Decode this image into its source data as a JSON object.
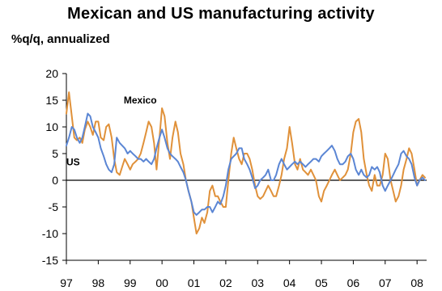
{
  "chart_data": {
    "type": "line",
    "title": "Mexican and US manufacturing activity",
    "ylabel": "%q/q, annualized",
    "xlabel": "",
    "ylim": [
      -15,
      20
    ],
    "yticks": [
      "20",
      "15",
      "10",
      "5",
      "0",
      "-5",
      "-10",
      "-15"
    ],
    "xlim": [
      1997,
      2008.3
    ],
    "xticks": [
      {
        "x": 1997,
        "label": "97"
      },
      {
        "x": 1998,
        "label": "98"
      },
      {
        "x": 1999,
        "label": "99"
      },
      {
        "x": 2000,
        "label": "00"
      },
      {
        "x": 2001,
        "label": "01"
      },
      {
        "x": 2002,
        "label": "02"
      },
      {
        "x": 2003,
        "label": "03"
      },
      {
        "x": 2004,
        "label": "04"
      },
      {
        "x": 2005,
        "label": "05"
      },
      {
        "x": 2006,
        "label": "06"
      },
      {
        "x": 2007,
        "label": "07"
      },
      {
        "x": 2008,
        "label": "08"
      }
    ],
    "grid": false,
    "colors": {
      "Mexico": "#e0913a",
      "US": "#5b86d4"
    },
    "series": [
      {
        "name": "Mexico",
        "x": [
          1997.0,
          1997.08,
          1997.17,
          1997.25,
          1997.33,
          1997.42,
          1997.5,
          1997.58,
          1997.67,
          1997.75,
          1997.83,
          1997.92,
          1998.0,
          1998.08,
          1998.17,
          1998.25,
          1998.33,
          1998.42,
          1998.5,
          1998.58,
          1998.67,
          1998.75,
          1998.83,
          1998.92,
          1999.0,
          1999.08,
          1999.17,
          1999.25,
          1999.33,
          1999.42,
          1999.5,
          1999.58,
          1999.67,
          1999.75,
          1999.83,
          1999.92,
          2000.0,
          2000.08,
          2000.17,
          2000.25,
          2000.33,
          2000.42,
          2000.5,
          2000.58,
          2000.67,
          2000.75,
          2000.83,
          2000.92,
          2001.0,
          2001.08,
          2001.17,
          2001.25,
          2001.33,
          2001.42,
          2001.5,
          2001.58,
          2001.67,
          2001.75,
          2001.83,
          2001.92,
          2002.0,
          2002.08,
          2002.17,
          2002.25,
          2002.33,
          2002.42,
          2002.5,
          2002.58,
          2002.67,
          2002.75,
          2002.83,
          2002.92,
          2003.0,
          2003.08,
          2003.17,
          2003.25,
          2003.33,
          2003.42,
          2003.5,
          2003.58,
          2003.67,
          2003.75,
          2003.83,
          2003.92,
          2004.0,
          2004.08,
          2004.17,
          2004.25,
          2004.33,
          2004.42,
          2004.5,
          2004.58,
          2004.67,
          2004.75,
          2004.83,
          2004.92,
          2005.0,
          2005.08,
          2005.17,
          2005.25,
          2005.33,
          2005.42,
          2005.5,
          2005.58,
          2005.67,
          2005.75,
          2005.83,
          2005.92,
          2006.0,
          2006.08,
          2006.17,
          2006.25,
          2006.33,
          2006.42,
          2006.5,
          2006.58,
          2006.67,
          2006.75,
          2006.83,
          2006.92,
          2007.0,
          2007.08,
          2007.17,
          2007.25,
          2007.33,
          2007.42,
          2007.5,
          2007.58,
          2007.67,
          2007.75,
          2007.83,
          2007.92,
          2008.0,
          2008.08,
          2008.17,
          2008.25
        ],
        "values": [
          12.5,
          16.5,
          12.0,
          8.0,
          7.5,
          8.0,
          7.0,
          9.5,
          11.0,
          10.0,
          8.5,
          11.0,
          11.0,
          8.0,
          7.5,
          10.0,
          10.5,
          8.0,
          4.0,
          1.5,
          1.0,
          2.5,
          4.0,
          3.0,
          2.0,
          3.0,
          3.5,
          4.0,
          5.0,
          7.0,
          9.0,
          11.0,
          10.0,
          7.0,
          2.0,
          8.0,
          13.5,
          12.0,
          7.0,
          4.0,
          8.0,
          11.0,
          9.0,
          5.0,
          3.0,
          0.0,
          -2.0,
          -4.0,
          -7.0,
          -10.0,
          -9.0,
          -7.0,
          -8.0,
          -6.0,
          -2.0,
          -1.0,
          -3.0,
          -3.0,
          -4.0,
          -5.0,
          -5.0,
          0.0,
          5.0,
          8.0,
          6.0,
          4.0,
          3.0,
          5.0,
          5.0,
          4.0,
          2.0,
          -1.0,
          -3.0,
          -3.5,
          -3.0,
          -2.0,
          -1.0,
          -2.0,
          -3.0,
          -3.0,
          -1.0,
          1.0,
          4.0,
          6.0,
          10.0,
          7.0,
          3.0,
          2.0,
          4.0,
          2.0,
          1.5,
          1.0,
          2.0,
          1.0,
          0.0,
          -3.0,
          -4.0,
          -2.0,
          -1.0,
          0.0,
          1.0,
          2.0,
          1.0,
          0.0,
          0.5,
          1.0,
          2.0,
          5.0,
          9.0,
          11.0,
          11.5,
          9.0,
          4.0,
          1.0,
          -1.0,
          -2.0,
          1.0,
          -1.0,
          -1.0,
          1.0,
          5.0,
          4.0,
          0.0,
          -2.0,
          -4.0,
          -3.0,
          -1.0,
          2.0,
          4.0,
          6.0,
          5.0,
          2.0,
          -1.0,
          0.0,
          1.0,
          0.5
        ]
      },
      {
        "name": "US",
        "x": [
          1997.0,
          1997.08,
          1997.17,
          1997.25,
          1997.33,
          1997.42,
          1997.5,
          1997.58,
          1997.67,
          1997.75,
          1997.83,
          1997.92,
          1998.0,
          1998.08,
          1998.17,
          1998.25,
          1998.33,
          1998.42,
          1998.5,
          1998.58,
          1998.67,
          1998.75,
          1998.83,
          1998.92,
          1999.0,
          1999.08,
          1999.17,
          1999.25,
          1999.33,
          1999.42,
          1999.5,
          1999.58,
          1999.67,
          1999.75,
          1999.83,
          1999.92,
          2000.0,
          2000.08,
          2000.17,
          2000.25,
          2000.33,
          2000.42,
          2000.5,
          2000.58,
          2000.67,
          2000.75,
          2000.83,
          2000.92,
          2001.0,
          2001.08,
          2001.17,
          2001.25,
          2001.33,
          2001.42,
          2001.5,
          2001.58,
          2001.67,
          2001.75,
          2001.83,
          2001.92,
          2002.0,
          2002.08,
          2002.17,
          2002.25,
          2002.33,
          2002.42,
          2002.5,
          2002.58,
          2002.67,
          2002.75,
          2002.83,
          2002.92,
          2003.0,
          2003.08,
          2003.17,
          2003.25,
          2003.33,
          2003.42,
          2003.5,
          2003.58,
          2003.67,
          2003.75,
          2003.83,
          2003.92,
          2004.0,
          2004.08,
          2004.17,
          2004.25,
          2004.33,
          2004.42,
          2004.5,
          2004.58,
          2004.67,
          2004.75,
          2004.83,
          2004.92,
          2005.0,
          2005.08,
          2005.17,
          2005.25,
          2005.33,
          2005.42,
          2005.5,
          2005.58,
          2005.67,
          2005.75,
          2005.83,
          2005.92,
          2006.0,
          2006.08,
          2006.17,
          2006.25,
          2006.33,
          2006.42,
          2006.5,
          2006.58,
          2006.67,
          2006.75,
          2006.83,
          2006.92,
          2007.0,
          2007.08,
          2007.17,
          2007.25,
          2007.33,
          2007.42,
          2007.5,
          2007.58,
          2007.67,
          2007.75,
          2007.83,
          2007.92,
          2008.0,
          2008.08,
          2008.17,
          2008.25
        ],
        "values": [
          6.5,
          8.0,
          10.0,
          9.5,
          8.0,
          7.0,
          8.0,
          10.0,
          12.5,
          12.0,
          10.0,
          9.0,
          8.0,
          6.0,
          4.5,
          3.0,
          2.0,
          1.5,
          3.0,
          8.0,
          7.0,
          6.5,
          6.0,
          5.0,
          5.5,
          5.0,
          4.5,
          4.0,
          4.0,
          3.5,
          4.0,
          3.5,
          3.0,
          4.0,
          6.0,
          8.0,
          9.5,
          8.0,
          6.0,
          5.0,
          4.5,
          4.0,
          3.5,
          2.5,
          1.5,
          0.0,
          -2.0,
          -4.0,
          -6.0,
          -6.5,
          -6.0,
          -5.5,
          -5.5,
          -5.0,
          -5.0,
          -6.0,
          -5.0,
          -4.0,
          -4.5,
          -3.0,
          -1.0,
          2.0,
          4.0,
          4.5,
          5.0,
          6.0,
          6.0,
          4.0,
          3.0,
          2.0,
          0.5,
          -1.5,
          -1.0,
          0.0,
          0.5,
          1.0,
          2.0,
          0.0,
          0.0,
          1.0,
          3.0,
          4.0,
          3.0,
          2.0,
          2.5,
          3.0,
          3.5,
          3.0,
          3.5,
          3.0,
          2.5,
          3.0,
          3.5,
          4.0,
          4.0,
          3.5,
          4.5,
          5.0,
          5.5,
          6.0,
          6.5,
          5.5,
          4.0,
          3.0,
          3.0,
          3.5,
          4.5,
          5.0,
          4.0,
          2.0,
          1.0,
          2.0,
          1.0,
          0.5,
          1.0,
          2.5,
          2.0,
          2.5,
          1.5,
          -1.0,
          -2.0,
          -1.0,
          0.0,
          1.0,
          2.0,
          3.0,
          5.0,
          5.5,
          4.5,
          4.0,
          3.0,
          0.5,
          -1.0,
          0.0,
          0.5,
          0.0
        ]
      }
    ],
    "annotations": [
      {
        "text": "Mexico",
        "series": "Mexico"
      },
      {
        "text": "US",
        "series": "US"
      }
    ]
  }
}
